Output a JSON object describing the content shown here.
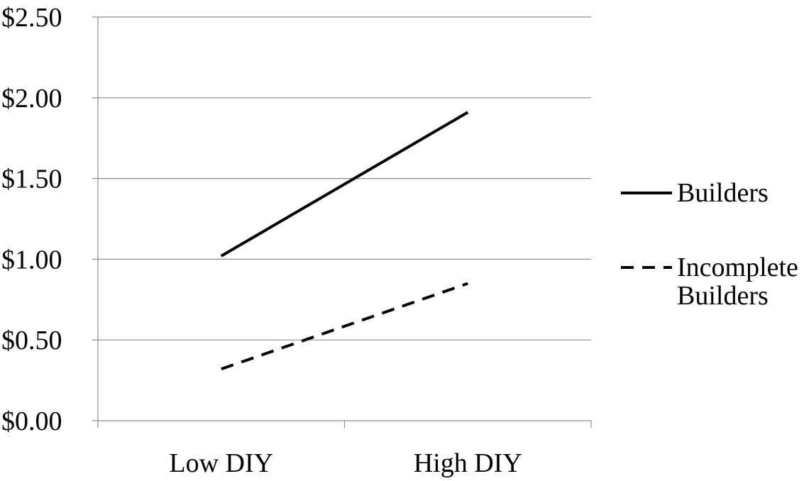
{
  "chart_data": {
    "type": "line",
    "title": "",
    "xlabel": "",
    "ylabel": "",
    "categories": [
      "Low DIY",
      "High DIY"
    ],
    "y_ticks": [
      "$0.00",
      "$0.50",
      "$1.00",
      "$1.50",
      "$2.00",
      "$2.50"
    ],
    "y_tick_values": [
      0,
      0.5,
      1.0,
      1.5,
      2.0,
      2.5
    ],
    "ylim": [
      0,
      2.5
    ],
    "grid": true,
    "legend_position": "right",
    "series": [
      {
        "name": "Builders",
        "values": [
          1.02,
          1.91
        ],
        "line_style": "solid",
        "color": "#000000"
      },
      {
        "name": "Incomplete Builders",
        "values": [
          0.32,
          0.85
        ],
        "line_style": "dashed",
        "color": "#000000"
      }
    ],
    "legend": [
      {
        "lines": [
          "Builders"
        ]
      },
      {
        "lines": [
          "Incomplete",
          "Builders"
        ]
      }
    ]
  }
}
